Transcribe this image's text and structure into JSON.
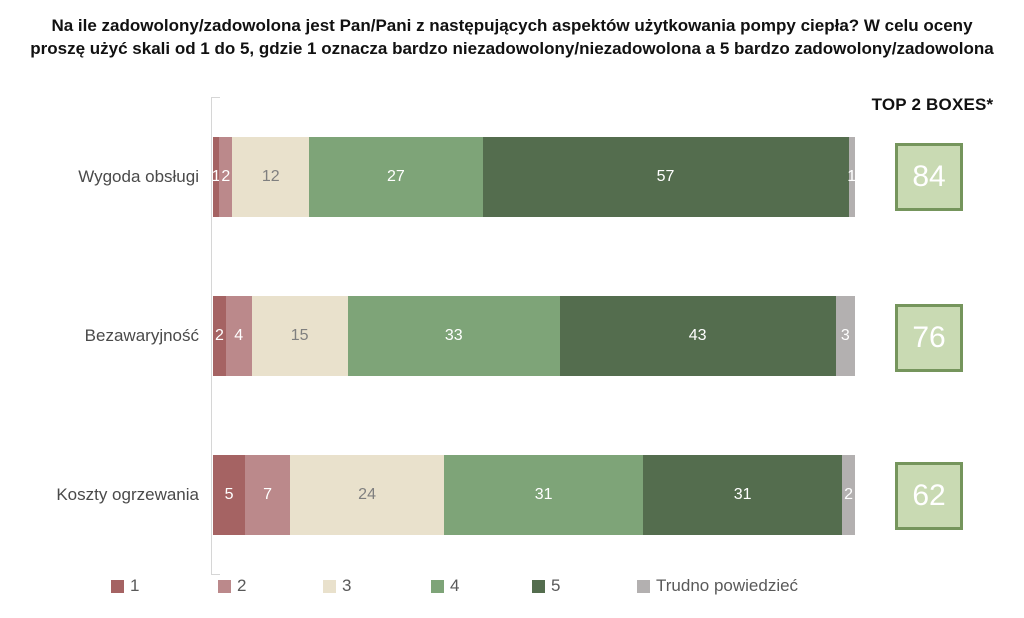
{
  "title": {
    "line1": "Na ile zadowolony/zadowolona jest Pan/Pani z następujących aspektów użytkowania pompy ciepła? W celu oceny",
    "line2": "proszę użyć skali od 1 do 5, gdzie 1 oznacza bardzo niezadowolony/niezadowolona a 5 bardzo zadowolony/zadowolona"
  },
  "top2_header": "TOP 2 BOXES*",
  "colors": {
    "score1": "#a56363",
    "score2": "#bb898b",
    "score3": "#e9e1cc",
    "score4": "#7ea478",
    "score5": "#546d4e",
    "dont_know": "#b3b0b0",
    "box_fill": "#c9dab3",
    "box_border": "#75955c",
    "axis": "#d6d6d6"
  },
  "chart_data": {
    "type": "bar",
    "stacked": true,
    "orientation": "horizontal",
    "xlim": [
      0,
      100
    ],
    "grid": false,
    "legend_position": "bottom",
    "categories": [
      "Wygoda obsługi",
      "Bezawaryjność",
      "Koszty ogrzewania"
    ],
    "series": [
      {
        "name": "1",
        "color": "#a56363",
        "label_color": "#ffffff",
        "values": [
          1,
          2,
          5
        ]
      },
      {
        "name": "2",
        "color": "#bb898b",
        "label_color": "#ffffff",
        "values": [
          2,
          4,
          7
        ]
      },
      {
        "name": "3",
        "color": "#e9e1cc",
        "label_color": "#7f7f7f",
        "values": [
          12,
          15,
          24
        ]
      },
      {
        "name": "4",
        "color": "#7ea478",
        "label_color": "#ffffff",
        "values": [
          27,
          33,
          31
        ]
      },
      {
        "name": "5",
        "color": "#546d4e",
        "label_color": "#ffffff",
        "values": [
          57,
          43,
          31
        ]
      },
      {
        "name": "Trudno powiedzieć",
        "color": "#b3b0b0",
        "label_color": "#ffffff",
        "values": [
          1,
          3,
          2
        ]
      }
    ],
    "top2_boxes": {
      "label": "TOP 2 BOXES*",
      "values": [
        84,
        76,
        62
      ]
    }
  }
}
